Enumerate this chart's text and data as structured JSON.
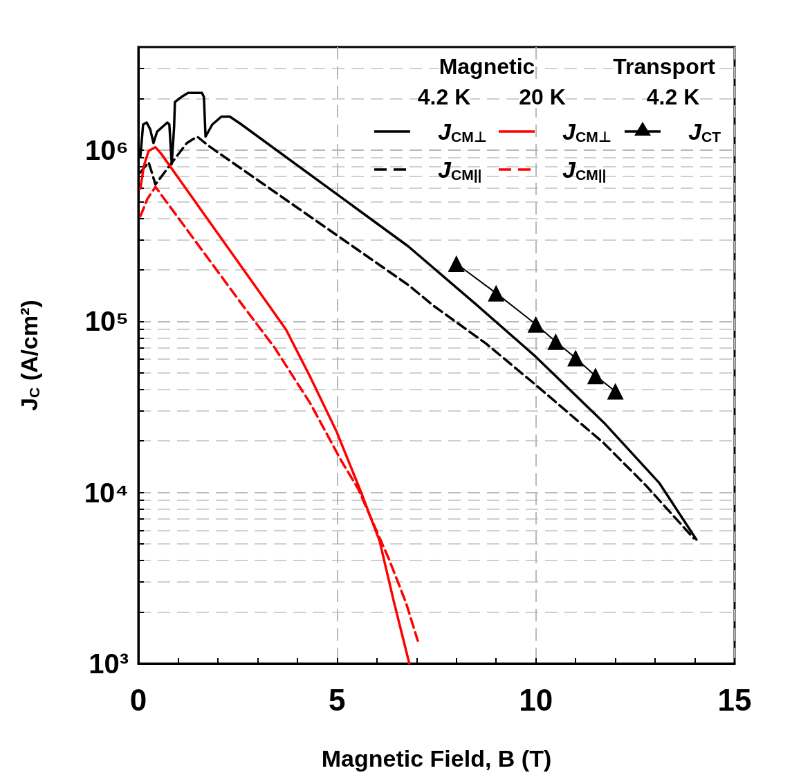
{
  "chart_data": {
    "type": "line",
    "xlabel": "Magnetic Field, B (T)",
    "ylabel": "J$_{C}$ (A/cm²)",
    "log": "y",
    "grid": true,
    "legend": "top right",
    "xlim": [
      0,
      15
    ],
    "ylim": [
      1000,
      4000000
    ],
    "xticks": [
      0,
      {
        "value": 1,
        "label": null
      },
      {
        "value": 2,
        "label": null
      },
      {
        "value": 3,
        "label": null
      },
      {
        "value": 4,
        "label": null
      },
      5,
      {
        "value": 6,
        "label": null
      },
      {
        "value": 7,
        "label": null
      },
      {
        "value": 8,
        "label": null
      },
      {
        "value": 9,
        "label": null
      },
      10,
      {
        "value": 11,
        "label": null
      },
      {
        "value": 12,
        "label": null
      },
      {
        "value": 13,
        "label": null
      },
      {
        "value": 14,
        "label": null
      },
      15
    ],
    "yticks": [
      {
        "value": 1000,
        "label": "10³"
      },
      {
        "value": 2000,
        "label": null
      },
      {
        "value": 3000,
        "label": null
      },
      {
        "value": 4000,
        "label": null
      },
      {
        "value": 5000,
        "label": null
      },
      {
        "value": 6000,
        "label": null
      },
      {
        "value": 7000,
        "label": null
      },
      {
        "value": 8000,
        "label": null
      },
      {
        "value": 9000,
        "label": null
      },
      {
        "value": 10000,
        "label": "10⁴"
      },
      {
        "value": 20000,
        "label": null
      },
      {
        "value": 30000,
        "label": null
      },
      {
        "value": 40000,
        "label": null
      },
      {
        "value": 50000,
        "label": null
      },
      {
        "value": 60000,
        "label": null
      },
      {
        "value": 70000,
        "label": null
      },
      {
        "value": 80000,
        "label": null
      },
      {
        "value": 90000,
        "label": null
      },
      {
        "value": 100000,
        "label": "10⁵"
      },
      {
        "value": 200000,
        "label": null
      },
      {
        "value": 300000,
        "label": null
      },
      {
        "value": 400000,
        "label": null
      },
      {
        "value": 500000,
        "label": null
      },
      {
        "value": 600000,
        "label": null
      },
      {
        "value": 700000,
        "label": null
      },
      {
        "value": 800000,
        "label": null
      },
      {
        "value": 900000,
        "label": null
      },
      {
        "value": 1000000,
        "label": "10⁶"
      },
      {
        "value": 2000000,
        "label": null
      },
      {
        "value": 3000000,
        "label": null
      }
    ],
    "annotations": [
      "Magnetic",
      "Transport",
      "4.2 K",
      "20 K",
      "4.2 K"
    ],
    "series": [
      {
        "name": "J$_{CM⊥}$",
        "color": "#000000",
        "line_style": "solid",
        "marker": "none",
        "x": [
          0.05,
          0.12,
          0.21,
          0.3,
          0.38,
          0.47,
          0.73,
          0.78,
          0.84,
          0.9,
          0.92,
          1.08,
          1.25,
          1.6,
          1.65,
          1.69,
          1.86,
          2.09,
          2.3,
          2.56,
          6.79,
          8.47,
          10.0,
          11.71,
          13.1,
          14.04
        ],
        "values": [
          910000,
          1410000,
          1450000,
          1320000,
          1100000,
          1280000,
          1450000,
          1410000,
          830000,
          1370000,
          1910000,
          2040000,
          2160000,
          2160000,
          2040000,
          1200000,
          1410000,
          1570000,
          1570000,
          1430000,
          274000,
          127000,
          62000,
          25600,
          11400,
          5300
        ]
      },
      {
        "name": "J$_{CM||}$",
        "color": "#000000",
        "line_style": "dashed",
        "marker": "none",
        "x": [
          0.05,
          0.26,
          0.43,
          0.87,
          1.22,
          1.48,
          1.79,
          6.79,
          7.43,
          8.75,
          9.97,
          11.71,
          12.75,
          13.97
        ],
        "values": [
          740000,
          850000,
          630000,
          860000,
          1100000,
          1200000,
          1050000,
          163000,
          123000,
          74000,
          43000,
          19400,
          11100,
          5400
        ]
      },
      {
        "name": "J$_{CM⊥}$",
        "color": "#ff0000",
        "line_style": "solid",
        "marker": "none",
        "x": [
          0.05,
          0.14,
          0.26,
          0.43,
          0.57,
          3.25,
          3.72,
          4.33,
          4.99,
          5.59,
          6.07,
          6.42,
          6.79,
          6.82
        ],
        "values": [
          596000,
          810000,
          990000,
          1040000,
          955000,
          127000,
          89000,
          47000,
          22600,
          10200,
          5200,
          2340,
          1060,
          1000
        ]
      },
      {
        "name": "J$_{CM||}$",
        "color": "#ff0000",
        "line_style": "dashed",
        "marker": "none",
        "x": [
          0.05,
          0.23,
          0.43,
          2.59,
          3.43,
          4.33,
          5.1,
          5.53,
          6.3,
          6.73,
          7.03
        ],
        "values": [
          410000,
          520000,
          610000,
          127000,
          70000,
          33000,
          15400,
          10500,
          4100,
          2280,
          1360
        ]
      },
      {
        "name": "J$_{CT}$",
        "color": "#000000",
        "line_style": "solid",
        "marker": "triangle",
        "x": [
          8,
          9,
          10,
          10.5,
          11,
          11.5,
          12
        ],
        "values": [
          217000,
          146000,
          96000,
          76000,
          61000,
          48000,
          39000
        ]
      }
    ]
  }
}
